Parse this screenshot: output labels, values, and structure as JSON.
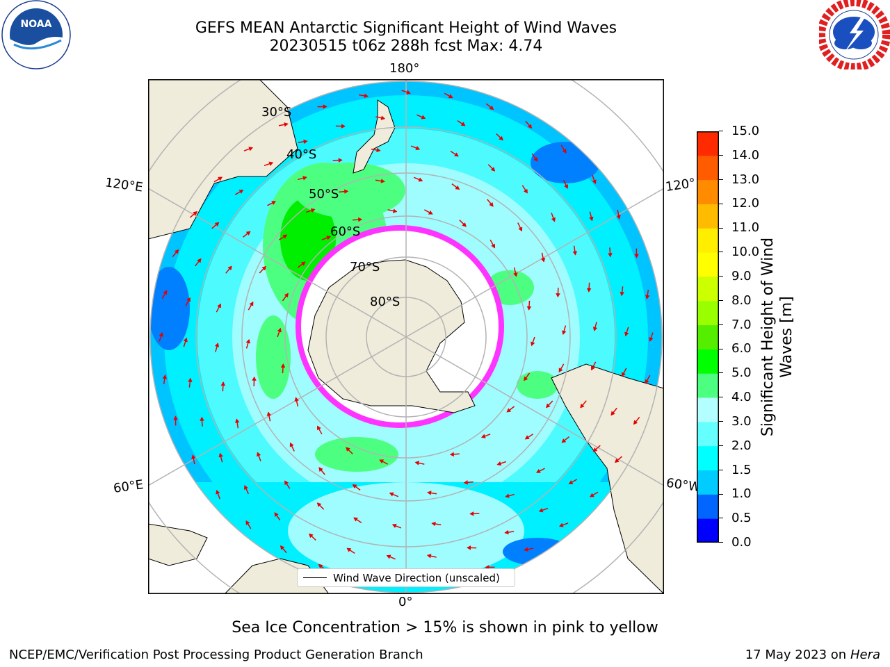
{
  "title": {
    "line1": "GEFS MEAN Antarctic Significant Height of Wind Waves",
    "line2": "20230515 t06z 288h fcst   Max: 4.74"
  },
  "logos": {
    "noaa": {
      "icon": "noaa-logo",
      "text": "NOAA",
      "ring_text": "NATIONAL OCEANIC AND ATMOSPHERIC ADMINISTRATION · U.S. DEPARTMENT OF COMMERCE"
    },
    "nws": {
      "icon": "national-weather-service-logo",
      "ring_text": "NATIONAL WEATHER SERVICE"
    }
  },
  "map": {
    "projection": "south-polar-stereographic",
    "longitude_labels": {
      "top": "180°",
      "bottom": "0°",
      "upper_left": "120°E",
      "upper_right": "120°",
      "lower_left": "60°E",
      "lower_right": "60°W"
    },
    "latitude_labels": [
      "30°S",
      "40°S",
      "50°S",
      "60°S",
      "70°S",
      "80°S"
    ],
    "colors": {
      "land": "#efecdb",
      "ocean_low": "#00ffff",
      "ice": "#ff33ff",
      "arrow": "#e60000"
    }
  },
  "legend": {
    "label": "Wind Wave Direction (unscaled)"
  },
  "colorbar": {
    "label_line1": "Significant Height of Wind",
    "label_line2": "Waves [m]",
    "ticks": [
      "0.0",
      "0.5",
      "1.0",
      "1.5",
      "2.0",
      "3.0",
      "4.0",
      "5.0",
      "6.0",
      "7.0",
      "8.0",
      "9.0",
      "10.0",
      "11.0",
      "12.0",
      "13.0",
      "14.0",
      "15.0"
    ],
    "colors": [
      "#0000ff",
      "#0066ff",
      "#00ccff",
      "#00ffff",
      "#66ffff",
      "#b3ffff",
      "#4dff80",
      "#00ff00",
      "#55ee00",
      "#99ff00",
      "#ccff00",
      "#ffff00",
      "#ffee00",
      "#ffbb00",
      "#ff8c00",
      "#ff5c00",
      "#ff2a00",
      "#ff0000"
    ]
  },
  "ice_note": "Sea Ice Concentration > 15% is shown in pink to yellow",
  "footer": {
    "left": "NCEP/EMC/Verification Post Processing Product Generation Branch",
    "right_date": "17 May 2023 on",
    "right_host": "Hera"
  }
}
